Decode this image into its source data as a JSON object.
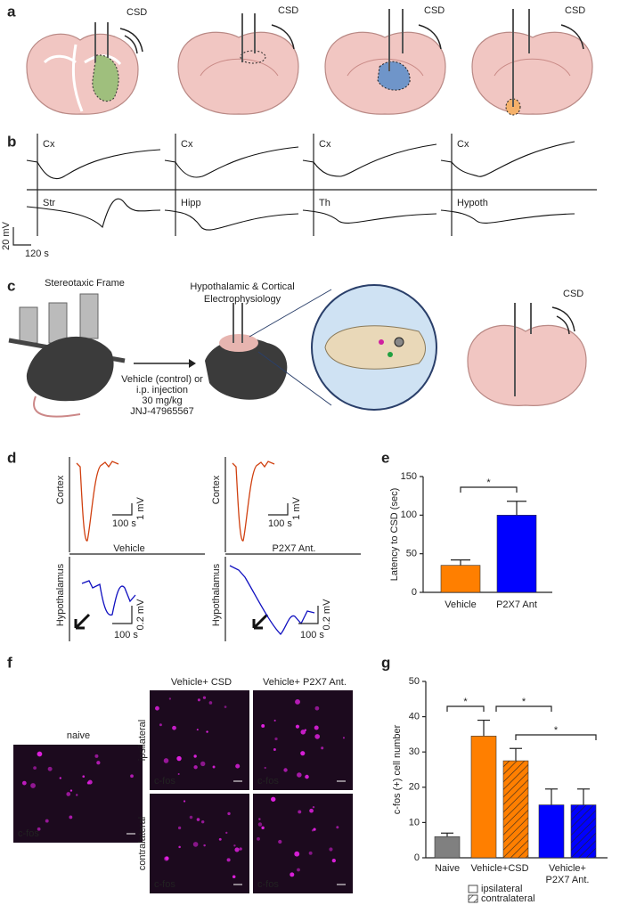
{
  "panel_labels": [
    "a",
    "b",
    "c",
    "d",
    "e",
    "f",
    "g"
  ],
  "a": {
    "csd_labels": [
      "CSD",
      "CSD",
      "CSD",
      "CSD"
    ]
  },
  "b": {
    "top_labels": [
      "Cx",
      "Cx",
      "Cx",
      "Cx"
    ],
    "bottom_labels": [
      "Str",
      "Hipp",
      "Th",
      "Hypoth"
    ],
    "scale_v": "20 mV",
    "scale_t": "120 s"
  },
  "c": {
    "frame": "Stereotaxic Frame",
    "ephys": [
      "Hypothalamic & Cortical",
      "Electrophysiology"
    ],
    "injection": [
      "Vehicle (control) or",
      "i.p. injection",
      "30 mg/kg",
      "JNJ-47965567"
    ],
    "csd": "CSD"
  },
  "d": {
    "conditions": [
      {
        "name": "Vehicle",
        "cortex": "Cortex",
        "hypothalamus": "Hypothalamus",
        "cortex_scale_v": "1 mV",
        "cortex_scale_t": "100 s",
        "hyp_scale_v": "0.2 mV",
        "hyp_scale_t": "100 s"
      },
      {
        "name": "P2X7 Ant.",
        "cortex": "Cortex",
        "hypothalamus": "Hypothalamus",
        "cortex_scale_v": "1 mV",
        "cortex_scale_t": "100 s",
        "hyp_scale_v": "0.2 mV",
        "hyp_scale_t": "100 s"
      }
    ]
  },
  "f": {
    "naive": "naive",
    "columns": [
      "Vehicle+ CSD",
      "Vehicle+ P2X7 Ant."
    ],
    "rows": [
      "ipsilateral",
      "contralateral"
    ],
    "stain_labels": [
      "c-fos",
      "c-fos",
      "c-fos",
      "c-fos",
      "c-fos"
    ]
  },
  "chart_data": [
    {
      "type": "bar",
      "ylabel": "Latency to CSD (sec)",
      "categories": [
        "Vehicle",
        "P2X7 Ant"
      ],
      "values": [
        35,
        100
      ],
      "errors": [
        7,
        18
      ],
      "colors": [
        "#ff7f00",
        "#0000ff"
      ],
      "ylim": [
        0,
        150
      ],
      "yticks": [
        0,
        50,
        100,
        150
      ],
      "annotations": [
        "*"
      ]
    },
    {
      "type": "grouped_bar",
      "ylabel": "c-fos (+) cell number",
      "categories": [
        "Naive",
        "Vehicle+CSD",
        "Vehicle+ P2X7 Ant."
      ],
      "colors": [
        "#808080",
        "#ff7f00",
        "#0000ff"
      ],
      "series": [
        {
          "name": "ipsilateral",
          "pattern": "solid",
          "values": [
            6,
            34.5,
            15
          ],
          "errors": [
            1,
            4.5,
            4.5
          ]
        },
        {
          "name": "contralateral",
          "pattern": "hatched",
          "values": [
            null,
            27.5,
            15
          ],
          "errors": [
            null,
            3.5,
            4.5
          ]
        }
      ],
      "ylim": [
        0,
        50
      ],
      "yticks": [
        0,
        10,
        20,
        30,
        40,
        50
      ],
      "annotations": [
        "*",
        "*",
        "*"
      ]
    }
  ]
}
